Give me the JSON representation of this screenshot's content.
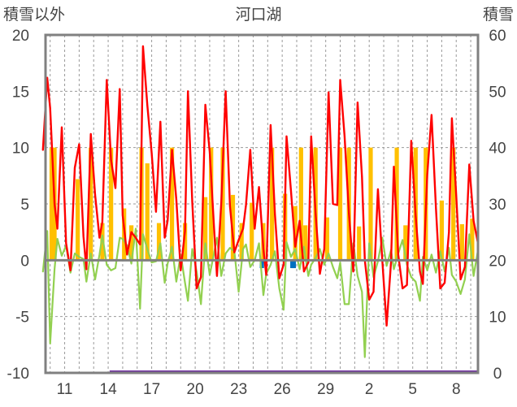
{
  "chart_data": {
    "type": "line",
    "title": "河口湖",
    "left_axis_label": "積雪以外",
    "right_axis_label": "積雪",
    "ylim_left": [
      -10,
      20
    ],
    "ylim_right": [
      0,
      60
    ],
    "y_ticks_left": [
      "20",
      "15",
      "10",
      "5",
      "0",
      "-5",
      "-10"
    ],
    "y_ticks_right": [
      "60",
      "50",
      "40",
      "30",
      "20",
      "10",
      "0"
    ],
    "x_tick_labels": [
      "11",
      "14",
      "17",
      "20",
      "23",
      "26",
      "29",
      "2",
      "5",
      "8"
    ],
    "x_range_days": [
      0,
      30
    ],
    "x_tick_positions_days": [
      1.5,
      4.5,
      7.5,
      10.5,
      13.5,
      16.5,
      19.5,
      22.5,
      25.5,
      28.5
    ],
    "grid": true,
    "colors": {
      "temperature": "#ff0000",
      "dew": "#92d050",
      "precip": "#ffc000",
      "precip_accent": "#0070c0",
      "snow": "#7030a0",
      "axis": "#808080",
      "frame": "#808080"
    },
    "series": [
      {
        "type": "line",
        "color": "#ff0000",
        "x": [
          0.0,
          0.3,
          0.5,
          0.8,
          1.0,
          1.3,
          1.6,
          1.9,
          2.2,
          2.5,
          2.8,
          3.0,
          3.3,
          3.6,
          3.9,
          4.1,
          4.4,
          4.7,
          5.0,
          5.3,
          5.5,
          5.8,
          6.1,
          6.4,
          6.7,
          6.9,
          7.2,
          7.5,
          7.8,
          8.1,
          8.4,
          8.6,
          8.9,
          9.2,
          9.5,
          9.8,
          10.0,
          10.3,
          10.6,
          10.9,
          11.2,
          11.5,
          11.8,
          12.0,
          12.3,
          12.6,
          12.9,
          13.2,
          13.5,
          13.8,
          14.0,
          14.3,
          14.6,
          14.9,
          15.2,
          15.4,
          15.7,
          16.0,
          16.3,
          16.6,
          16.8,
          17.1,
          17.4,
          17.7,
          18.0,
          18.3,
          18.5,
          18.8,
          19.1,
          19.4,
          19.7,
          20.0,
          20.3,
          20.5,
          20.8,
          21.1,
          21.4,
          21.7,
          22.0,
          22.2,
          22.5,
          22.8,
          23.1,
          23.4,
          23.7,
          24.0,
          24.2,
          24.5,
          24.8,
          25.1,
          25.4,
          25.7,
          26.0,
          26.2,
          26.5,
          26.8,
          27.1,
          27.4,
          27.7,
          28.0,
          28.2,
          28.5,
          28.8,
          29.1,
          29.4,
          29.7,
          30.0
        ],
        "y": [
          9.8,
          16.2,
          13.5,
          5.0,
          2.8,
          11.8,
          1.5,
          -0.9,
          8.2,
          10.3,
          2.1,
          -0.8,
          11.2,
          5.8,
          2.0,
          3.4,
          16.0,
          8.9,
          6.4,
          15.2,
          4.0,
          0.5,
          2.5,
          2.0,
          1.4,
          19.0,
          13.8,
          9.5,
          4.3,
          12.3,
          2.0,
          3.5,
          9.8,
          5.4,
          -0.9,
          2.6,
          15.0,
          5.2,
          -2.5,
          -1.5,
          13.8,
          9.6,
          2.9,
          -1.4,
          5.1,
          15.0,
          4.8,
          0.7,
          1.8,
          2.8,
          4.9,
          9.8,
          2.8,
          6.5,
          1.0,
          -1.3,
          12.0,
          4.1,
          -1.6,
          -0.4,
          11.0,
          6.2,
          1.2,
          3.5,
          -1.0,
          -0.2,
          11.0,
          4.2,
          -1.2,
          1.0,
          14.9,
          5.0,
          4.9,
          16.0,
          11.0,
          4.2,
          -1.0,
          14.0,
          7.4,
          0.0,
          -3.5,
          -2.8,
          6.3,
          0.0,
          -5.8,
          -0.2,
          8.3,
          0.5,
          -2.5,
          -2.2,
          10.6,
          4.0,
          -1.0,
          -2.1,
          7.6,
          12.9,
          4.6,
          -2.5,
          -2.0,
          2.5,
          12.6,
          5.8,
          -1.7,
          -0.6,
          8.5,
          3.5,
          1.5
        ]
      },
      {
        "type": "line",
        "color": "#92d050",
        "x": [
          0.0,
          0.3,
          0.5,
          0.8,
          1.0,
          1.3,
          1.6,
          1.9,
          2.2,
          2.5,
          2.8,
          3.0,
          3.3,
          3.6,
          3.9,
          4.1,
          4.4,
          4.7,
          5.0,
          5.3,
          5.5,
          5.8,
          6.1,
          6.4,
          6.7,
          6.9,
          7.2,
          7.5,
          7.8,
          8.1,
          8.4,
          8.6,
          8.9,
          9.2,
          9.5,
          9.8,
          10.0,
          10.3,
          10.6,
          10.9,
          11.2,
          11.5,
          11.8,
          12.0,
          12.3,
          12.6,
          12.9,
          13.2,
          13.5,
          13.8,
          14.0,
          14.3,
          14.6,
          14.9,
          15.2,
          15.4,
          15.7,
          16.0,
          16.3,
          16.6,
          16.8,
          17.1,
          17.4,
          17.7,
          18.0,
          18.3,
          18.5,
          18.8,
          19.1,
          19.4,
          19.7,
          20.0,
          20.3,
          20.5,
          20.8,
          21.1,
          21.4,
          21.7,
          22.0,
          22.2,
          22.5,
          22.8,
          23.1,
          23.4,
          23.7,
          24.0,
          24.2,
          24.5,
          24.8,
          25.1,
          25.4,
          25.7,
          26.0,
          26.2,
          26.5,
          26.8,
          27.1,
          27.4,
          27.7,
          28.0,
          28.2,
          28.5,
          28.8,
          29.1,
          29.4,
          29.7,
          30.0
        ],
        "y": [
          -1.0,
          2.6,
          -7.4,
          -0.8,
          1.9,
          0.4,
          1.3,
          -1.1,
          0.6,
          0.3,
          0.1,
          -1.9,
          0.6,
          -1.7,
          0.5,
          2.2,
          -0.4,
          -0.9,
          -0.7,
          2.0,
          1.9,
          1.3,
          -0.3,
          2.8,
          -4.3,
          2.3,
          1.0,
          -0.2,
          -0.1,
          1.5,
          -2.0,
          -0.3,
          1.2,
          -1.9,
          0.5,
          -2.0,
          -3.6,
          1.0,
          -1.0,
          -3.9,
          1.5,
          -1.3,
          0.6,
          2.0,
          -1.4,
          0.6,
          1.1,
          0.8,
          -2.8,
          1.0,
          1.4,
          -0.6,
          0.0,
          1.5,
          -3.1,
          -1.2,
          -0.4,
          0.8,
          -2.5,
          -4.4,
          1.6,
          0.3,
          1.0,
          -0.8,
          1.2,
          -1.4,
          -0.4,
          0.2,
          1.0,
          -0.4,
          0.6,
          -0.6,
          -1.6,
          -0.2,
          -3.9,
          -3.9,
          1.5,
          -1.4,
          -2.8,
          -8.6,
          1.5,
          -1.5,
          -0.1,
          2.0,
          -0.5,
          0.9,
          -0.8,
          0.6,
          1.8,
          -0.4,
          -1.5,
          -1.9,
          -3.6,
          0.3,
          -0.9,
          0.5,
          -1.1,
          0.8,
          -1.0,
          1.1,
          -1.3,
          -1.9,
          -3.0,
          -1.7,
          2.3,
          -1.4,
          0.9
        ]
      },
      {
        "type": "bar",
        "color": "#ffc000",
        "x": [
          0.6,
          0.8,
          2.4,
          3.3,
          4.1,
          4.7,
          5.6,
          6.1,
          6.8,
          7.2,
          8.0,
          8.9,
          9.8,
          11.2,
          11.6,
          12.4,
          13.1,
          13.7,
          14.4,
          15.2,
          15.8,
          16.7,
          17.4,
          17.8,
          18.1,
          18.8,
          19.6,
          20.5,
          21.1,
          21.8,
          22.6,
          24.4,
          25.0,
          25.7,
          26.4,
          27.5,
          28.3,
          28.9,
          29.6
        ],
        "y": [
          10.0,
          10.0,
          7.2,
          10.0,
          3.3,
          10.0,
          4.6,
          3.1,
          10.0,
          8.6,
          3.3,
          10.0,
          3.3,
          5.6,
          10.0,
          10.0,
          5.8,
          3.3,
          5.1,
          3.3,
          10.0,
          5.9,
          4.8,
          10.0,
          3.1,
          10.0,
          3.8,
          10.0,
          10.0,
          3.0,
          10.0,
          10.0,
          3.1,
          10.0,
          10.0,
          5.3,
          10.0,
          3.2,
          3.7
        ]
      },
      {
        "type": "bar",
        "color": "#0070c0",
        "x": [
          15.1,
          17.2,
          17.3
        ],
        "y": [
          -0.7,
          -0.7,
          -0.7
        ]
      },
      {
        "type": "line",
        "axis": "right",
        "color": "#7030a0",
        "x": [
          4.6,
          30.0
        ],
        "y": [
          0,
          0
        ]
      }
    ]
  }
}
